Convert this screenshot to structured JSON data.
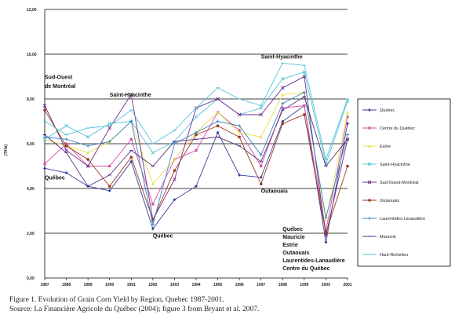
{
  "chart_data": {
    "type": "line",
    "ylabel": "(T/Ha)",
    "ylim": [
      0,
      12
    ],
    "yticks": [
      "0,00",
      "2,00",
      "4,00",
      "6,00",
      "8,00",
      "10,00",
      "12,00"
    ],
    "x": [
      "1987",
      "1988",
      "1989",
      "1990",
      "1991",
      "1992",
      "1993",
      "1994",
      "1995",
      "1996",
      "1997",
      "1998",
      "1999",
      "2000",
      "2001"
    ],
    "legend_position": "right",
    "series": [
      {
        "name": "Québec",
        "color": "#3a3e9c",
        "marker": "diamond",
        "values": [
          4.9,
          4.7,
          4.1,
          3.9,
          5.2,
          2.2,
          3.5,
          4.1,
          6.5,
          4.6,
          4.5,
          7.0,
          7.7,
          1.6,
          6.9
        ]
      },
      {
        "name": "Centre du Québec",
        "color": "#d64fa6",
        "marker": "square",
        "values": [
          5.1,
          6.0,
          5.0,
          5.0,
          6.2,
          3.3,
          5.3,
          5.7,
          7.4,
          6.6,
          5.0,
          7.6,
          7.7,
          2.1,
          7.2
        ]
      },
      {
        "name": "Estrie",
        "color": "#e8e04a",
        "marker": "triangle",
        "values": [
          6.2,
          5.9,
          5.6,
          6.1,
          7.0,
          4.2,
          5.3,
          6.5,
          7.4,
          6.5,
          6.3,
          8.2,
          8.3,
          2.6,
          7.4
        ]
      },
      {
        "name": "Saint-Hyacinthe",
        "color": "#58c4d6",
        "marker": "x",
        "values": [
          6.2,
          6.8,
          6.3,
          6.9,
          7.0,
          5.6,
          6.1,
          7.2,
          8.0,
          7.3,
          7.6,
          8.9,
          9.2,
          5.1,
          7.9
        ]
      },
      {
        "name": "Sud-Ouest-Montréal",
        "color": "#6d2c8c",
        "marker": "x",
        "values": [
          7.7,
          5.7,
          5.0,
          6.7,
          8.2,
          2.6,
          4.4,
          7.6,
          8.0,
          7.3,
          7.3,
          8.5,
          9.0,
          1.9,
          6.2
        ]
      },
      {
        "name": "Outaouais",
        "color": "#9a3a20",
        "marker": "circle",
        "values": [
          7.5,
          5.9,
          5.3,
          4.1,
          5.4,
          2.6,
          4.8,
          6.4,
          6.8,
          6.3,
          4.2,
          6.9,
          7.3,
          2.0,
          5.0
        ]
      },
      {
        "name": "Laurentides-Lanaudière",
        "color": "#3a88b8",
        "marker": "plus",
        "values": [
          6.3,
          6.2,
          5.9,
          6.1,
          7.0,
          2.4,
          6.0,
          6.5,
          7.0,
          6.8,
          5.5,
          7.8,
          8.3,
          2.7,
          6.4
        ]
      },
      {
        "name": "Mauricie",
        "color": "#5a3080",
        "marker": "dash",
        "values": [
          6.4,
          5.6,
          4.1,
          4.6,
          5.7,
          5.0,
          6.1,
          6.2,
          6.3,
          5.9,
          5.2,
          7.5,
          8.1,
          5.0,
          6.2
        ]
      },
      {
        "name": "Haut-Richelieu",
        "color": "#58c4d6",
        "marker": "dash",
        "values": [
          7.0,
          6.4,
          6.7,
          6.8,
          7.5,
          6.0,
          6.6,
          7.6,
          8.5,
          8.0,
          7.7,
          9.6,
          9.5,
          5.3,
          8.0
        ]
      }
    ],
    "annotations": [
      {
        "text": "Sud-Ouest",
        "x": "1987",
        "y": 8.9
      },
      {
        "text": "de Montréal",
        "x": "1987",
        "y": 8.5
      },
      {
        "text": "Saint-Hyacinthe",
        "x": "1990",
        "y": 8.1
      },
      {
        "text": "Saint-Hyacinthe",
        "x": "1997",
        "y": 9.8
      },
      {
        "text": "Québec",
        "x": "1987",
        "y": 4.4
      },
      {
        "text": "Québec",
        "x": "1992",
        "y": 1.8
      },
      {
        "text": "Outaouais",
        "x": "1997",
        "y": 3.8
      },
      {
        "text": "Québec",
        "x": "1998",
        "y": 2.1
      },
      {
        "text": "Mauricie",
        "x": "1998",
        "y": 1.75
      },
      {
        "text": "Estrie",
        "x": "1998",
        "y": 1.4
      },
      {
        "text": "Outaouais",
        "x": "1998",
        "y": 1.05
      },
      {
        "text": "Laurentides-Lanaudière",
        "x": "1998",
        "y": 0.7
      },
      {
        "text": "Centre du Québec",
        "x": "1998",
        "y": 0.35
      }
    ]
  },
  "caption": {
    "line1": "Figure 1. Evolution of Grain Corn Yield by Region, Quebec 1987-2001.",
    "line2": "Source: La Financière Agricole du Québec (2004); figure 3 from Bryant et al. 2007."
  }
}
